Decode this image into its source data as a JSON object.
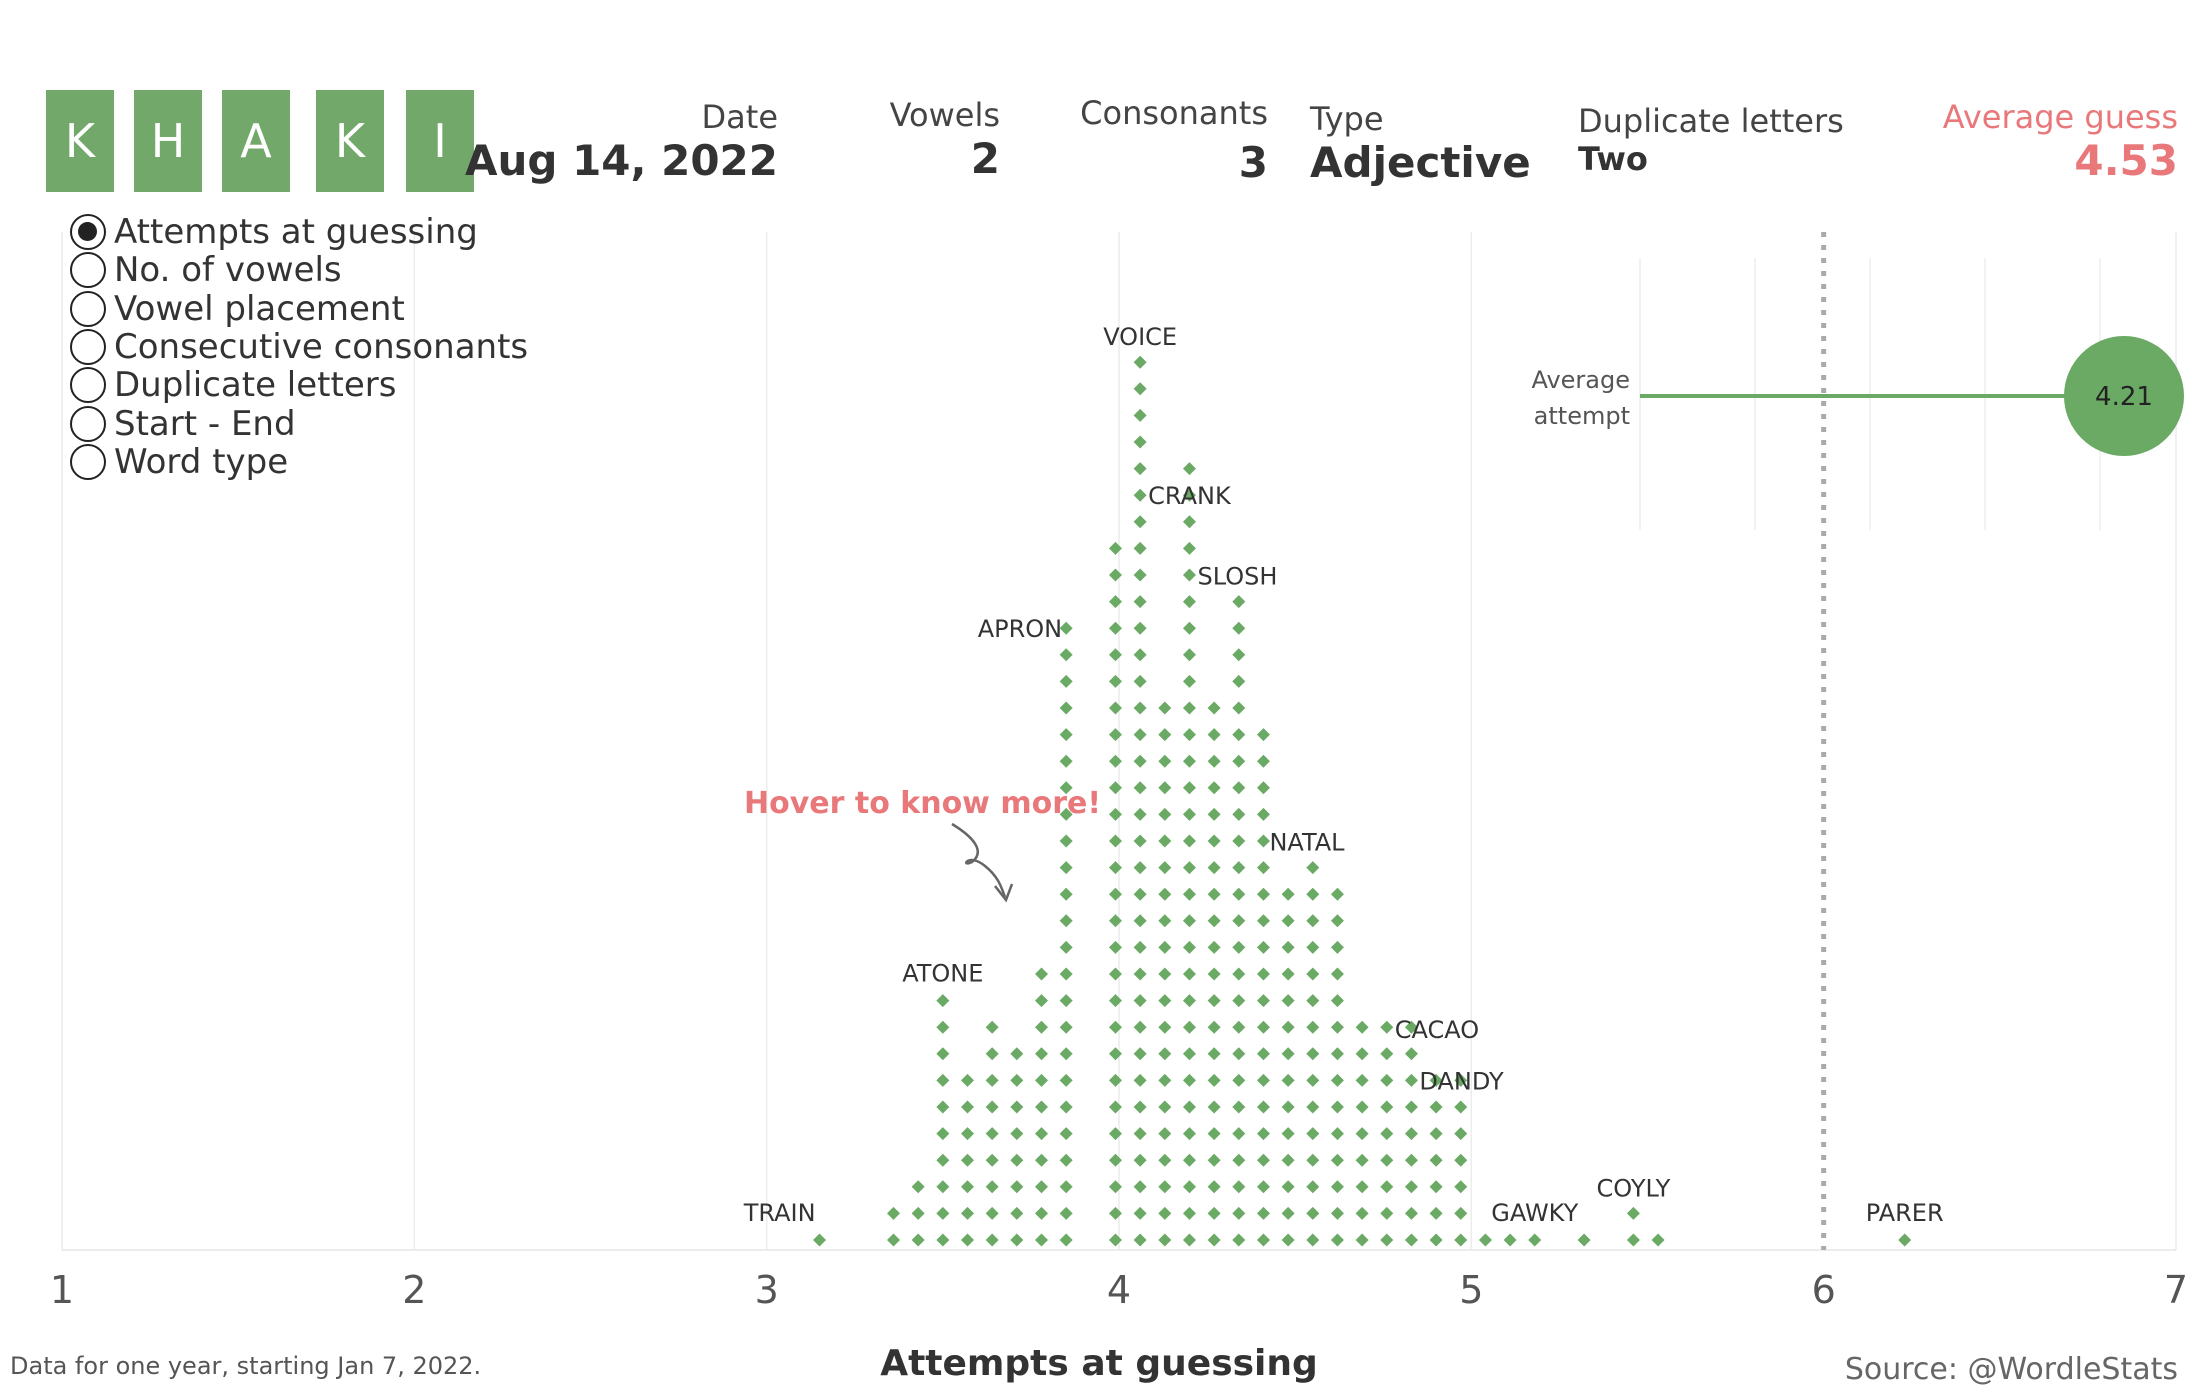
{
  "word": {
    "letters": [
      "K",
      "H",
      "A",
      "K",
      "I"
    ]
  },
  "stats": {
    "date_label": "Date",
    "date_value": "Aug 14, 2022",
    "vowels_label": "Vowels",
    "vowels_value": "2",
    "consonants_label": "Consonants",
    "consonants_value": "3",
    "type_label": "Type",
    "type_value": "Adjective",
    "duplicates_label": "Duplicate letters",
    "duplicates_value": "Two",
    "average_label": "Average guess",
    "average_value": "4.53"
  },
  "view_options": {
    "selected": "Attempts at guessing",
    "items": [
      "Attempts at guessing",
      "No. of vowels",
      "Vowel placement",
      "Consecutive consonants",
      "Duplicate letters",
      "Start - End",
      "Word type"
    ]
  },
  "annotation": {
    "hover_text": "Hover to know more!"
  },
  "footer": {
    "note": "Data for one year, starting Jan 7, 2022.",
    "source": "Source: @WordleStats"
  },
  "colors": {
    "dot": "#6aaa64",
    "accent": "#e8787a",
    "tile": "#72a86a",
    "reference_line": "#aaaaaa"
  },
  "chart_data": {
    "type": "scatter",
    "xlabel": "Attempts at guessing",
    "ylabel": "",
    "xlim": [
      1,
      7
    ],
    "x_ticks": [
      1,
      2,
      3,
      4,
      5,
      6,
      7
    ],
    "grid": true,
    "reference_line": {
      "x": 6,
      "style": "dotted"
    },
    "dot_columns": [
      {
        "x": 3.15,
        "count": 1
      },
      {
        "x": 3.36,
        "count": 2
      },
      {
        "x": 3.43,
        "count": 3
      },
      {
        "x": 3.5,
        "count": 10
      },
      {
        "x": 3.57,
        "count": 7
      },
      {
        "x": 3.64,
        "count": 9
      },
      {
        "x": 3.71,
        "count": 8
      },
      {
        "x": 3.78,
        "count": 11
      },
      {
        "x": 3.85,
        "count": 24
      },
      {
        "x": 3.99,
        "count": 27
      },
      {
        "x": 4.06,
        "count": 34
      },
      {
        "x": 4.13,
        "count": 21
      },
      {
        "x": 4.2,
        "count": 30
      },
      {
        "x": 4.27,
        "count": 21
      },
      {
        "x": 4.34,
        "count": 25
      },
      {
        "x": 4.41,
        "count": 20
      },
      {
        "x": 4.48,
        "count": 14
      },
      {
        "x": 4.55,
        "count": 15
      },
      {
        "x": 4.62,
        "count": 14
      },
      {
        "x": 4.69,
        "count": 9
      },
      {
        "x": 4.76,
        "count": 9
      },
      {
        "x": 4.83,
        "count": 9
      },
      {
        "x": 4.9,
        "count": 7
      },
      {
        "x": 4.97,
        "count": 7
      },
      {
        "x": 5.04,
        "count": 1
      },
      {
        "x": 5.11,
        "count": 1
      },
      {
        "x": 5.18,
        "count": 1
      },
      {
        "x": 5.32,
        "count": 1
      },
      {
        "x": 5.46,
        "count": 2
      },
      {
        "x": 5.53,
        "count": 1
      },
      {
        "x": 6.23,
        "count": 1
      }
    ],
    "labelled_words": [
      {
        "word": "TRAIN",
        "x": 3.15,
        "level": 1
      },
      {
        "word": "ATONE",
        "x": 3.5,
        "level": 10
      },
      {
        "word": "APRON",
        "x": 3.85,
        "level": 24
      },
      {
        "word": "VOICE",
        "x": 4.06,
        "level": 34
      },
      {
        "word": "CRANK",
        "x": 4.06,
        "level": 29
      },
      {
        "word": "SLOSH",
        "x": 4.2,
        "level": 25
      },
      {
        "word": "NATAL",
        "x": 4.41,
        "level": 15
      },
      {
        "word": "CACAO",
        "x": 4.76,
        "level": 9
      },
      {
        "word": "DANDY",
        "x": 4.83,
        "level": 7
      },
      {
        "word": "GAWKY",
        "x": 5.18,
        "level": 1
      },
      {
        "word": "COYLY",
        "x": 5.46,
        "level": 2
      },
      {
        "word": "PARER",
        "x": 6.23,
        "level": 1
      }
    ],
    "inset": {
      "label_line1": "Average",
      "label_line2": "attempt",
      "value": 4.21,
      "value_text": "4.21"
    }
  }
}
